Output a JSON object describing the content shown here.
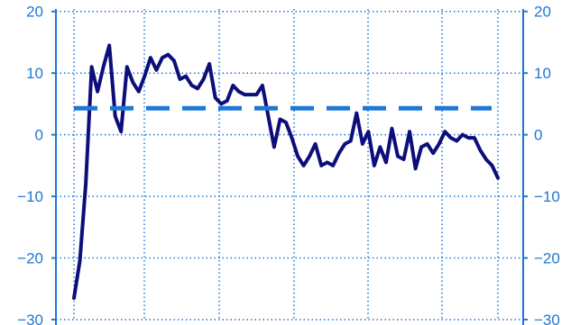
{
  "colors": {
    "axis": "#1f77d4",
    "tick_text": "#1f77d4",
    "grid": "#1f77d4",
    "series_line": "#0c0f7a",
    "reference_line": "#1f77d4",
    "background": "#ffffff"
  },
  "chart_data": {
    "type": "line",
    "title": "",
    "xlabel": "",
    "ylabel": "",
    "ylim": [
      -30,
      20
    ],
    "y_ticks": [
      20,
      10,
      0,
      -10,
      -20,
      -30
    ],
    "y_tick_labels": [
      "20",
      "10",
      "0",
      "−10",
      "−20",
      "−30"
    ],
    "grid": true,
    "y_axis_both_sides": true,
    "x_gridline_count": 6,
    "series": [
      {
        "style": "solid",
        "values": [
          -26.5,
          -20.5,
          -8,
          11,
          7,
          11,
          14.5,
          3,
          0.5,
          11,
          8.5,
          7,
          9.5,
          12.5,
          10.5,
          12.5,
          13,
          12,
          9,
          9.5,
          8,
          7.5,
          9,
          11.5,
          6,
          5,
          5.5,
          8,
          7,
          6.5,
          6.5,
          6.5,
          8,
          3,
          -2,
          2.5,
          2,
          -0.5,
          -3.5,
          -5,
          -3.5,
          -1.5,
          -5,
          -4.5,
          -5,
          -3,
          -1.5,
          -1,
          3.5,
          -1.5,
          0.5,
          -5,
          -2,
          -4.5,
          1,
          -3.5,
          -4,
          0.5,
          -5.5,
          -2,
          -1.5,
          -3,
          -1.5,
          0.5,
          -0.5,
          -1,
          0,
          -0.5,
          -0.5,
          -2.5,
          -4,
          -5,
          -7
        ]
      },
      {
        "style": "dashed",
        "values": [
          4.3,
          4.3
        ]
      }
    ]
  }
}
